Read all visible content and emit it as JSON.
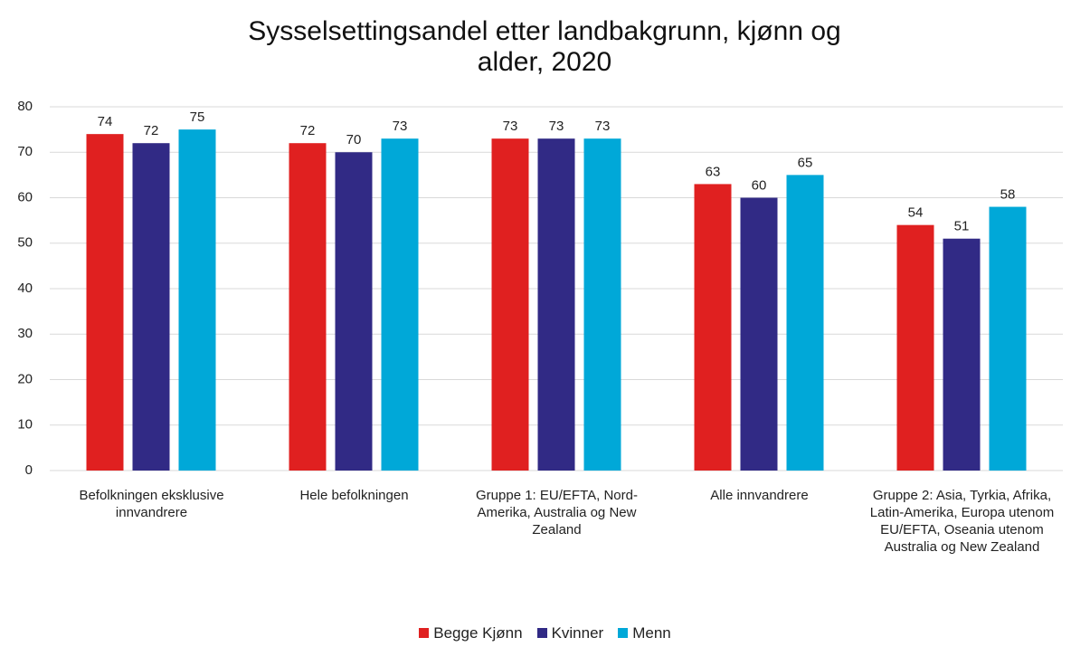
{
  "chart_data": {
    "type": "bar",
    "title": "Sysselsettingsandel etter landbakgrunn, kjønn og alder, 2020",
    "categories": [
      "Befolkningen eksklusive innvandrere",
      "Hele befolkningen",
      "Gruppe 1: EU/EFTA, Nord-Amerika, Australia og New Zealand",
      "Alle innvandrere",
      "Gruppe 2: Asia, Tyrkia, Afrika, Latin-Amerika, Europa utenom EU/EFTA, Oseania utenom Australia og New Zealand"
    ],
    "series": [
      {
        "name": "Begge Kjønn",
        "color": "#e02020",
        "values": [
          74,
          72,
          73,
          63,
          54
        ]
      },
      {
        "name": "Kvinner",
        "color": "#312a85",
        "values": [
          72,
          70,
          73,
          60,
          51
        ]
      },
      {
        "name": "Menn",
        "color": "#00a8d8",
        "values": [
          75,
          73,
          73,
          65,
          58
        ]
      }
    ],
    "ylim": [
      0,
      80
    ],
    "yticks": [
      0,
      10,
      20,
      30,
      40,
      50,
      60,
      70,
      80
    ],
    "grid": true,
    "legend": "bottom"
  }
}
